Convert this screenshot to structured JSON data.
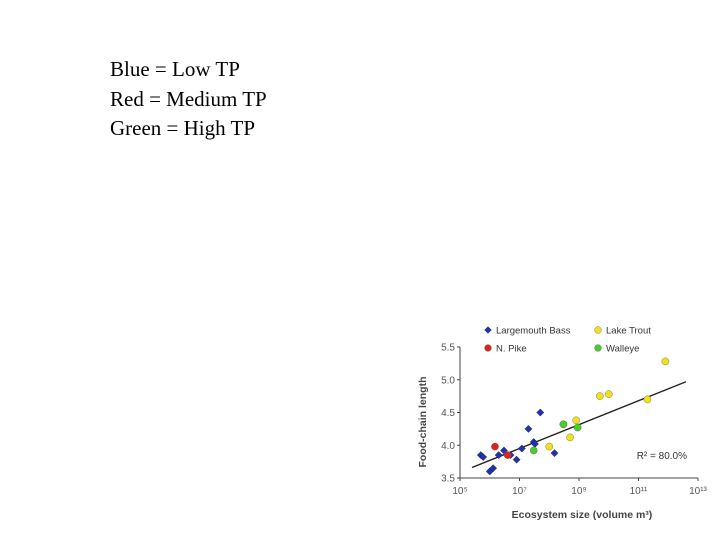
{
  "legend_notes": [
    "Blue = Low TP",
    "Red = Medium TP",
    "Green = High TP"
  ],
  "colors": {
    "Largemouth Bass": "#2233aa",
    "N. Pike": "#dd2222",
    "Lake Trout": "#f0e020",
    "Walleye": "#44cc33",
    "trend_line": "#222222",
    "axis": "#444444"
  },
  "chart_data": {
    "type": "scatter",
    "xlabel": "Ecosystem size (volume m³)",
    "ylabel": "Food-chain length",
    "x_scale": "log10",
    "xlim": [
      100000.0,
      10000000000000.0
    ],
    "ylim": [
      3.5,
      5.5
    ],
    "x_ticks": [
      100000.0,
      10000000.0,
      1000000000.0,
      100000000000.0,
      10000000000000.0
    ],
    "x_tick_labels": [
      "10⁵",
      "10⁷",
      "10⁹",
      "10¹¹",
      "10¹³"
    ],
    "y_ticks": [
      3.5,
      4.0,
      4.5,
      5.0,
      5.5
    ],
    "y_tick_labels": [
      "3.5",
      "4.0",
      "4.5",
      "5.0",
      "5.5"
    ],
    "legend_placement": "top",
    "annotation": "R² = 80.0%",
    "trendline": {
      "x": [
        100000.0,
        10000000000000.0
      ],
      "y": [
        3.61,
        5.02
      ]
    },
    "series": [
      {
        "name": "Largemouth Bass",
        "marker": "diamond",
        "x": [
          500000.0,
          600000.0,
          1000000.0,
          1300000.0,
          2000000.0,
          3000000.0,
          5000000.0,
          8000000.0,
          12000000.0,
          20000000.0,
          30000000.0,
          33000000.0,
          50000000.0,
          150000000.0
        ],
        "y": [
          3.85,
          3.82,
          3.6,
          3.65,
          3.85,
          3.92,
          3.85,
          3.78,
          3.95,
          4.25,
          4.05,
          4.02,
          4.5,
          3.88
        ]
      },
      {
        "name": "N. Pike",
        "marker": "circle",
        "x": [
          1500000.0,
          4000000.0
        ],
        "y": [
          3.98,
          3.85
        ]
      },
      {
        "name": "Lake Trout",
        "marker": "circle",
        "x": [
          100000000.0,
          300000000.0,
          500000000.0,
          800000000.0,
          5000000000.0,
          10000000000.0,
          200000000000.0,
          800000000000.0
        ],
        "y": [
          3.98,
          4.32,
          4.12,
          4.38,
          4.75,
          4.78,
          4.7,
          5.28
        ]
      },
      {
        "name": "Walleye",
        "marker": "circle",
        "x": [
          30000000.0,
          300000000.0,
          900000000.0
        ],
        "y": [
          3.92,
          4.32,
          4.27
        ]
      }
    ]
  }
}
